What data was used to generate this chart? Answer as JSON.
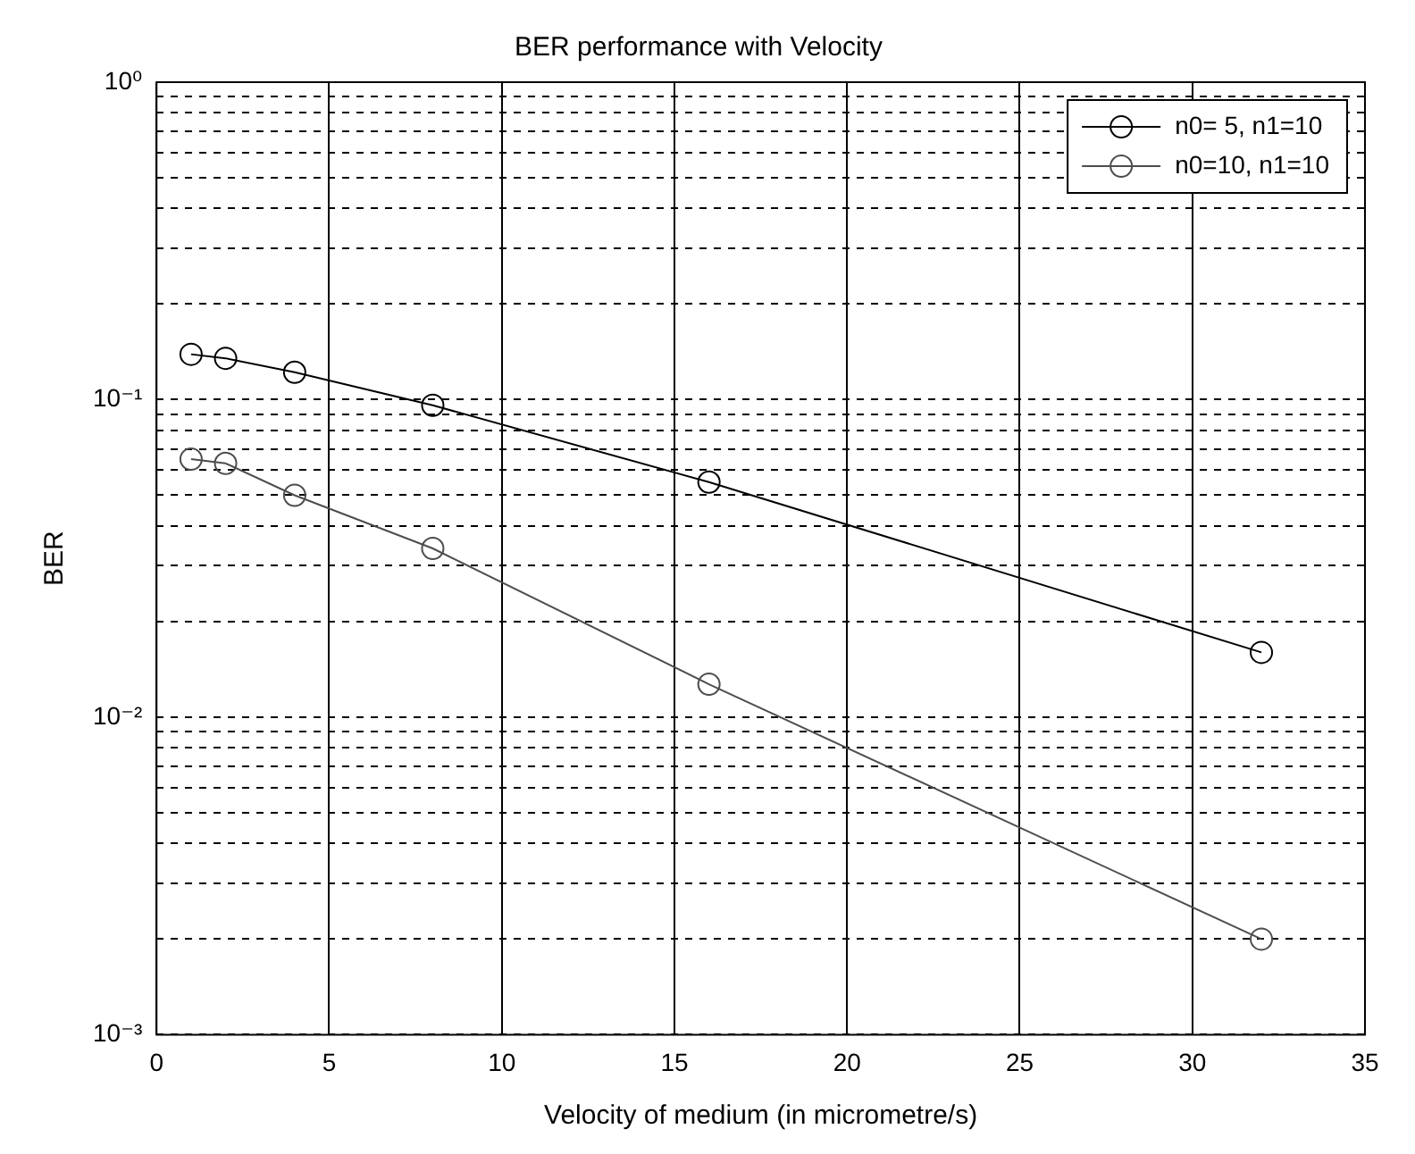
{
  "chart_data": {
    "type": "line",
    "title": "BER performance with Velocity",
    "xlabel": "Velocity of medium (in micrometre/s)",
    "ylabel": "BER",
    "x": [
      1,
      2,
      4,
      8,
      16,
      32
    ],
    "series": [
      {
        "name": "n0= 5, n1=10",
        "color": "#000000",
        "values": [
          0.139,
          0.135,
          0.122,
          0.096,
          0.055,
          0.016
        ]
      },
      {
        "name": "n0=10, n1=10",
        "color": "#4d4d4d",
        "values": [
          0.065,
          0.063,
          0.05,
          0.034,
          0.0127,
          0.002
        ]
      }
    ],
    "xlim": [
      0,
      35
    ],
    "xticks": [
      0,
      5,
      10,
      15,
      20,
      25,
      30,
      35
    ],
    "ylim": [
      0.001,
      1
    ],
    "log": true,
    "yticks": [
      {
        "value": 0.001,
        "label": "10⁻³"
      },
      {
        "value": 0.002,
        "label": null
      },
      {
        "value": 0.003,
        "label": null
      },
      {
        "value": 0.004,
        "label": null
      },
      {
        "value": 0.005,
        "label": null
      },
      {
        "value": 0.006,
        "label": null
      },
      {
        "value": 0.007,
        "label": null
      },
      {
        "value": 0.008,
        "label": null
      },
      {
        "value": 0.009,
        "label": null
      },
      {
        "value": 0.01,
        "label": "10⁻²"
      },
      {
        "value": 0.02,
        "label": null
      },
      {
        "value": 0.03,
        "label": null
      },
      {
        "value": 0.04,
        "label": null
      },
      {
        "value": 0.05,
        "label": null
      },
      {
        "value": 0.06,
        "label": null
      },
      {
        "value": 0.07,
        "label": null
      },
      {
        "value": 0.08,
        "label": null
      },
      {
        "value": 0.09,
        "label": null
      },
      {
        "value": 0.1,
        "label": "10⁻¹"
      },
      {
        "value": 0.2,
        "label": null
      },
      {
        "value": 0.3,
        "label": null
      },
      {
        "value": 0.4,
        "label": null
      },
      {
        "value": 0.5,
        "label": null
      },
      {
        "value": 0.6,
        "label": null
      },
      {
        "value": 0.7,
        "label": null
      },
      {
        "value": 0.8,
        "label": null
      },
      {
        "value": 0.9,
        "label": null
      },
      {
        "value": 1,
        "label": "10⁰"
      }
    ],
    "grid": true,
    "legend": "top right",
    "marker": "circle",
    "line_style": "solid"
  }
}
